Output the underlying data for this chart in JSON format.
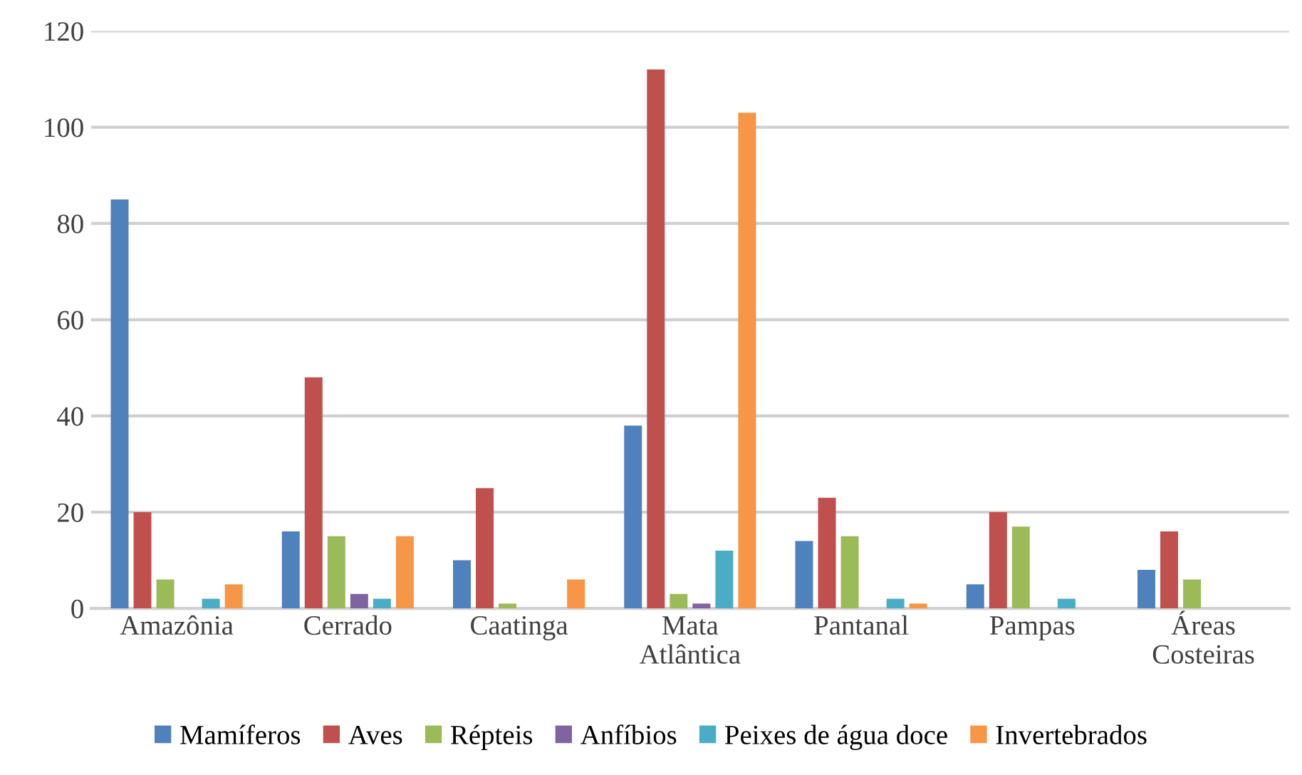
{
  "chart_data": {
    "type": "bar",
    "categories": [
      "Amazônia",
      "Cerrado",
      "Caatinga",
      "Mata\nAtlântica",
      "Pantanal",
      "Pampas",
      "Áreas\nCosteiras"
    ],
    "series": [
      {
        "name": "Mamíferos",
        "color": "#4f81bd",
        "values": [
          85,
          16,
          10,
          38,
          14,
          5,
          8
        ]
      },
      {
        "name": "Aves",
        "color": "#c0504d",
        "values": [
          20,
          48,
          25,
          112,
          23,
          20,
          16
        ]
      },
      {
        "name": "Répteis",
        "color": "#9bbb59",
        "values": [
          6,
          15,
          1,
          3,
          15,
          17,
          6
        ]
      },
      {
        "name": "Anfíbios",
        "color": "#8064a2",
        "values": [
          0,
          3,
          0,
          1,
          0,
          0,
          0
        ]
      },
      {
        "name": "Peixes de água doce",
        "color": "#4bacc6",
        "values": [
          2,
          2,
          0,
          12,
          2,
          2,
          0
        ]
      },
      {
        "name": "Invertebrados",
        "color": "#f79646",
        "values": [
          5,
          15,
          6,
          103,
          1,
          0,
          0
        ]
      }
    ],
    "ylim": [
      0,
      120
    ],
    "yticks": [
      0,
      20,
      40,
      60,
      80,
      100,
      120
    ],
    "grid": "y",
    "legend": "bottom"
  }
}
